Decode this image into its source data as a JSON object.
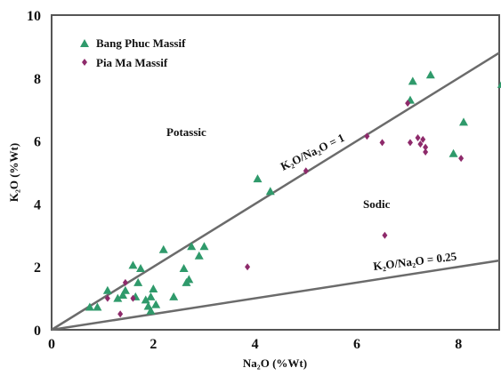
{
  "chart_data": {
    "type": "scatter",
    "title": "",
    "xlabel": "Na₂O (%Wt)",
    "ylabel": "K₂O (%Wt)",
    "xlim": [
      0,
      8.8
    ],
    "ylim": [
      0,
      10
    ],
    "x_ticks": [
      "0",
      "2",
      "4",
      "6",
      "8"
    ],
    "y_ticks": [
      "0",
      "2",
      "4",
      "6",
      "8",
      "10"
    ],
    "grid": false,
    "legend_position": "top-left",
    "series": [
      {
        "name": "Bang Phuc Massif",
        "marker": "triangle",
        "color": "#2f9a6b",
        "points": [
          [
            0.75,
            0.72
          ],
          [
            0.9,
            0.72
          ],
          [
            1.1,
            1.25
          ],
          [
            1.3,
            1.0
          ],
          [
            1.4,
            1.1
          ],
          [
            1.45,
            1.25
          ],
          [
            1.6,
            2.05
          ],
          [
            1.65,
            1.05
          ],
          [
            1.75,
            1.95
          ],
          [
            1.7,
            1.5
          ],
          [
            1.85,
            0.95
          ],
          [
            1.9,
            0.75
          ],
          [
            1.95,
            1.05
          ],
          [
            1.95,
            0.6
          ],
          [
            2.0,
            1.3
          ],
          [
            2.05,
            0.8
          ],
          [
            2.2,
            2.55
          ],
          [
            2.4,
            1.05
          ],
          [
            2.6,
            1.95
          ],
          [
            2.65,
            1.5
          ],
          [
            2.7,
            1.6
          ],
          [
            2.75,
            2.65
          ],
          [
            2.9,
            2.35
          ],
          [
            3.0,
            2.65
          ],
          [
            4.05,
            4.8
          ],
          [
            4.3,
            4.4
          ],
          [
            7.05,
            7.3
          ],
          [
            7.1,
            7.9
          ],
          [
            7.45,
            8.1
          ],
          [
            7.9,
            5.6
          ],
          [
            8.1,
            6.6
          ],
          [
            8.85,
            7.8
          ]
        ]
      },
      {
        "name": "Pia Ma Massif",
        "marker": "diamond",
        "color": "#8e2a6b",
        "points": [
          [
            1.1,
            1.0
          ],
          [
            1.35,
            0.5
          ],
          [
            1.45,
            1.5
          ],
          [
            1.6,
            1.0
          ],
          [
            3.85,
            2.0
          ],
          [
            5.0,
            5.05
          ],
          [
            6.2,
            6.15
          ],
          [
            6.5,
            5.95
          ],
          [
            6.55,
            3.0
          ],
          [
            7.0,
            7.2
          ],
          [
            7.05,
            5.95
          ],
          [
            7.2,
            6.1
          ],
          [
            7.25,
            5.9
          ],
          [
            7.3,
            6.05
          ],
          [
            7.35,
            5.8
          ],
          [
            7.35,
            5.65
          ],
          [
            8.05,
            5.45
          ]
        ]
      }
    ],
    "reference_lines": [
      {
        "label": "K₂O/Na₂O = 1",
        "ratio": 1
      },
      {
        "label": "K₂O/Na₂O = 0.25",
        "ratio": 0.25
      }
    ],
    "annotations": [
      "Potassic",
      "Sodic"
    ]
  }
}
